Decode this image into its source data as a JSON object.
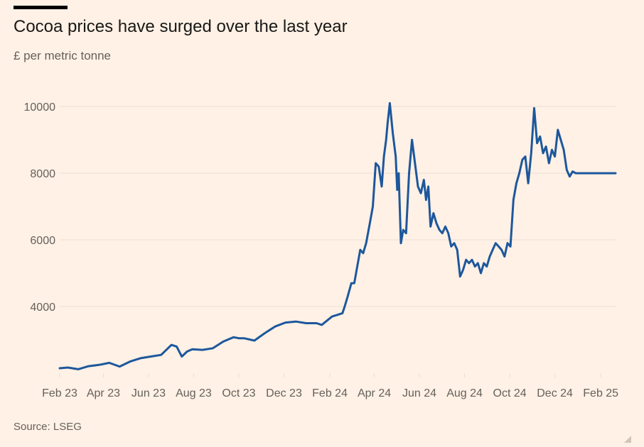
{
  "title": "Cocoa prices have surged over the last year",
  "subtitle": "£ per metric tonne",
  "source": "Source: LSEG",
  "colors": {
    "background": "#FFF1E5",
    "line": "#1D579C",
    "grid": "#E9DED3",
    "text": "#66605C"
  },
  "chart_data": {
    "type": "line",
    "title": "Cocoa prices have surged over the last year",
    "xlabel": "",
    "ylabel": "£ per metric tonne",
    "xlim": [
      "2023-02-01",
      "2025-02-21"
    ],
    "ylim": [
      2000,
      10300
    ],
    "grid": true,
    "y_ticks": [
      4000,
      6000,
      8000,
      10000
    ],
    "y_tick_labels": [
      "4000",
      "6000",
      "8000",
      "10000"
    ],
    "x_ticks": [
      "2023-02-01",
      "2023-04-01",
      "2023-06-01",
      "2023-08-01",
      "2023-10-01",
      "2023-12-01",
      "2024-02-01",
      "2024-04-01",
      "2024-06-01",
      "2024-08-01",
      "2024-10-01",
      "2024-12-01",
      "2025-02-01"
    ],
    "x_tick_labels": [
      "Feb 23",
      "Apr 23",
      "Jun 23",
      "Aug 23",
      "Oct 23",
      "Dec 23",
      "Feb 24",
      "Apr 24",
      "Jun 24",
      "Aug 24",
      "Oct 24",
      "Dec 24",
      "Feb 25"
    ],
    "series": [
      {
        "name": "",
        "x": [
          "2023-02-01",
          "2023-02-12",
          "2023-02-26",
          "2023-03-12",
          "2023-03-26",
          "2023-04-09",
          "2023-04-23",
          "2023-05-07",
          "2023-05-21",
          "2023-06-04",
          "2023-06-18",
          "2023-07-02",
          "2023-07-09",
          "2023-07-16",
          "2023-07-23",
          "2023-07-30",
          "2023-08-13",
          "2023-08-27",
          "2023-09-10",
          "2023-09-24",
          "2023-10-01",
          "2023-10-08",
          "2023-10-22",
          "2023-11-05",
          "2023-11-19",
          "2023-12-03",
          "2023-12-17",
          "2023-12-31",
          "2024-01-14",
          "2024-01-21",
          "2024-02-04",
          "2024-02-11",
          "2024-02-18",
          "2024-02-21",
          "2024-02-25",
          "2024-03-01",
          "2024-03-05",
          "2024-03-09",
          "2024-03-13",
          "2024-03-17",
          "2024-03-21",
          "2024-03-26",
          "2024-03-30",
          "2024-04-03",
          "2024-04-07",
          "2024-04-11",
          "2024-04-14",
          "2024-04-17",
          "2024-04-19",
          "2024-04-22",
          "2024-04-26",
          "2024-04-30",
          "2024-05-02",
          "2024-05-04",
          "2024-05-07",
          "2024-05-10",
          "2024-05-14",
          "2024-05-18",
          "2024-05-22",
          "2024-05-26",
          "2024-05-30",
          "2024-06-03",
          "2024-06-07",
          "2024-06-10",
          "2024-06-13",
          "2024-06-16",
          "2024-06-20",
          "2024-06-24",
          "2024-06-28",
          "2024-07-02",
          "2024-07-06",
          "2024-07-10",
          "2024-07-14",
          "2024-07-18",
          "2024-07-22",
          "2024-07-26",
          "2024-07-30",
          "2024-08-03",
          "2024-08-07",
          "2024-08-11",
          "2024-08-15",
          "2024-08-19",
          "2024-08-23",
          "2024-08-27",
          "2024-08-31",
          "2024-09-04",
          "2024-09-08",
          "2024-09-12",
          "2024-09-16",
          "2024-09-20",
          "2024-09-24",
          "2024-09-28",
          "2024-10-02",
          "2024-10-06",
          "2024-10-10",
          "2024-10-14",
          "2024-10-18",
          "2024-10-22",
          "2024-10-26",
          "2024-10-30",
          "2024-11-03",
          "2024-11-07",
          "2024-11-11",
          "2024-11-15",
          "2024-11-19",
          "2024-11-23",
          "2024-11-27",
          "2024-12-01",
          "2024-12-05",
          "2024-12-09",
          "2024-12-13",
          "2024-12-17",
          "2024-12-21",
          "2024-12-25",
          "2024-12-29",
          "2025-01-02",
          "2025-01-06",
          "2025-01-10",
          "2025-01-14",
          "2025-01-18",
          "2025-01-22",
          "2025-01-26",
          "2025-01-30",
          "2025-02-03",
          "2025-02-07",
          "2025-02-11",
          "2025-02-14",
          "2025-02-18",
          "2025-02-21"
        ],
        "y": [
          2150,
          2170,
          2120,
          2210,
          2250,
          2310,
          2200,
          2350,
          2450,
          2500,
          2550,
          2850,
          2800,
          2500,
          2650,
          2720,
          2700,
          2750,
          2950,
          3080,
          3050,
          3050,
          2980,
          3200,
          3400,
          3520,
          3550,
          3500,
          3500,
          3450,
          3700,
          3750,
          3800,
          4000,
          4300,
          4700,
          4700,
          5200,
          5700,
          5600,
          5900,
          6500,
          7000,
          8300,
          8200,
          7600,
          8500,
          9000,
          9500,
          10100,
          9200,
          8500,
          7500,
          8000,
          5900,
          6300,
          6200,
          8000,
          9000,
          8300,
          7600,
          7400,
          7800,
          7200,
          7600,
          6400,
          6800,
          6500,
          6300,
          6200,
          6400,
          6200,
          5800,
          5900,
          5700,
          4900,
          5100,
          5400,
          5300,
          5400,
          5200,
          5300,
          5000,
          5300,
          5200,
          5500,
          5700,
          5900,
          5800,
          5700,
          5500,
          5900,
          5800,
          7200,
          7700,
          8000,
          8400,
          8500,
          7700,
          8600,
          9950,
          8900,
          9100,
          8600,
          8800,
          8300,
          8700,
          8500,
          9300,
          9000,
          8700,
          8100,
          7900,
          8050,
          8000,
          8000,
          8000,
          8000,
          8000,
          8000,
          8000,
          8000,
          8000,
          8000,
          8000,
          8000,
          8000,
          8000,
          8000
        ]
      }
    ]
  }
}
